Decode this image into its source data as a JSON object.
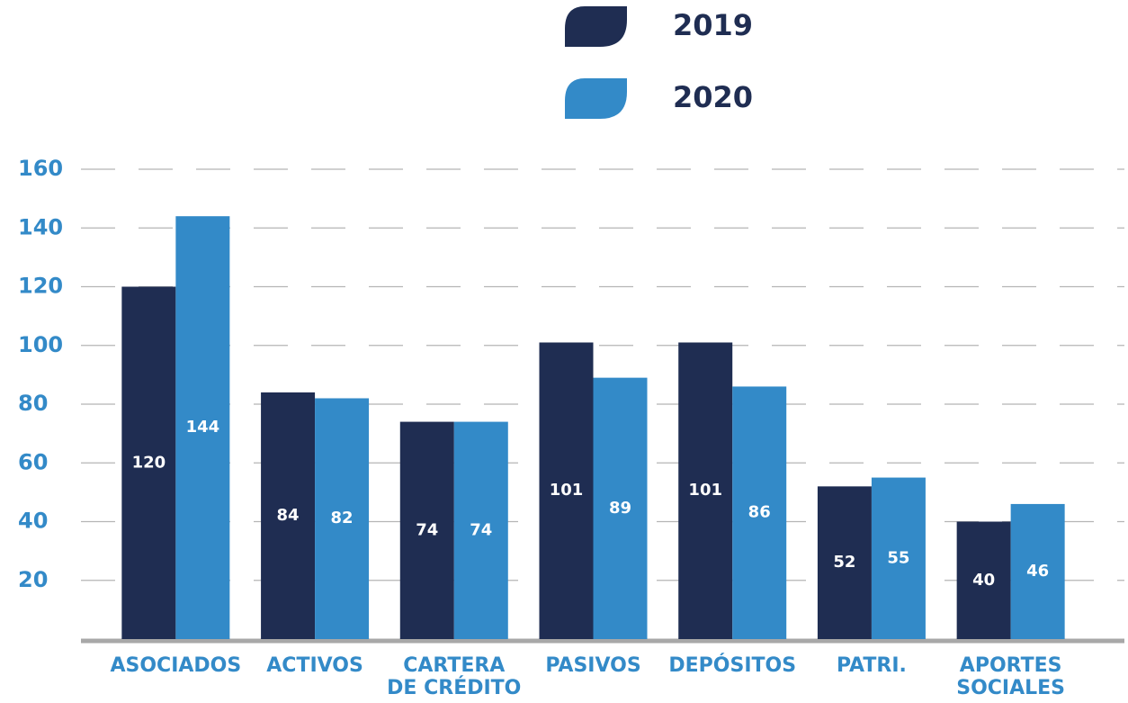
{
  "chart_data": {
    "type": "bar",
    "categories": [
      "ASOCIADOS",
      "ACTIVOS",
      [
        "CARTERA",
        "DE CRÉDITO"
      ],
      "PASIVOS",
      "DEPÓSITOS",
      "PATRI.",
      [
        "APORTES",
        "SOCIALES"
      ]
    ],
    "series": [
      {
        "name": "2019",
        "color": "#1f2d52",
        "values": [
          120,
          84,
          74,
          101,
          101,
          52,
          40
        ]
      },
      {
        "name": "2020",
        "color": "#338ac8",
        "values": [
          144,
          82,
          74,
          89,
          86,
          55,
          46
        ]
      }
    ],
    "ylim": [
      0,
      160
    ],
    "yticks": [
      20,
      40,
      60,
      80,
      100,
      120,
      140,
      160
    ],
    "grid": true
  }
}
